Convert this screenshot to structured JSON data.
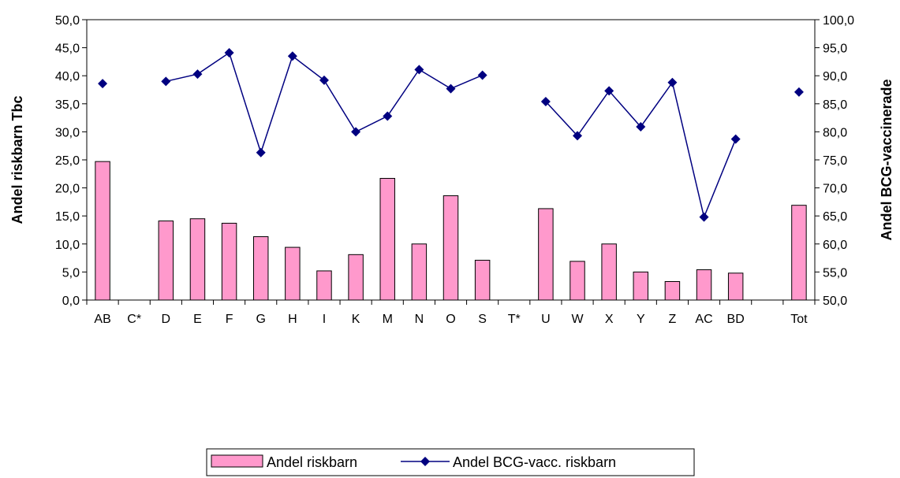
{
  "chart_data": {
    "type": "bar+line",
    "categories": [
      "AB",
      "C*",
      "D",
      "E",
      "F",
      "G",
      "H",
      "I",
      "K",
      "M",
      "N",
      "O",
      "S",
      "T*",
      "U",
      "W",
      "X",
      "Y",
      "Z",
      "AC",
      "BD",
      "",
      "Tot"
    ],
    "series": [
      {
        "name": "Andel riskbarn",
        "type": "bar",
        "axis": "left",
        "color": "#FF99CC",
        "values": [
          24.7,
          null,
          14.1,
          14.5,
          13.7,
          11.3,
          9.4,
          5.2,
          8.1,
          21.7,
          10.0,
          18.6,
          7.1,
          null,
          16.3,
          6.9,
          10.0,
          5.0,
          3.3,
          5.4,
          4.8,
          null,
          16.9
        ]
      },
      {
        "name": "Andel BCG-vacc. riskbarn",
        "type": "line",
        "axis": "right",
        "color": "#000080",
        "values": [
          88.6,
          null,
          89.0,
          90.3,
          94.1,
          76.3,
          93.5,
          89.2,
          80.0,
          82.8,
          91.1,
          87.7,
          90.1,
          null,
          85.4,
          79.3,
          87.3,
          80.9,
          88.8,
          64.8,
          78.7,
          null,
          87.1
        ]
      }
    ],
    "ylabel": "Andel riskbarn Tbc",
    "y2label": "Andel BCG-vaccinerade",
    "ylim": [
      0,
      50
    ],
    "y2lim": [
      50,
      100
    ],
    "yticks": [
      "0,0",
      "5,0",
      "10,0",
      "15,0",
      "20,0",
      "25,0",
      "30,0",
      "35,0",
      "40,0",
      "45,0",
      "50,0"
    ],
    "y2ticks": [
      "50,0",
      "55,0",
      "60,0",
      "65,0",
      "70,0",
      "75,0",
      "80,0",
      "85,0",
      "90,0",
      "95,0",
      "100,0"
    ],
    "grid": false,
    "legend": "bottom-center"
  }
}
